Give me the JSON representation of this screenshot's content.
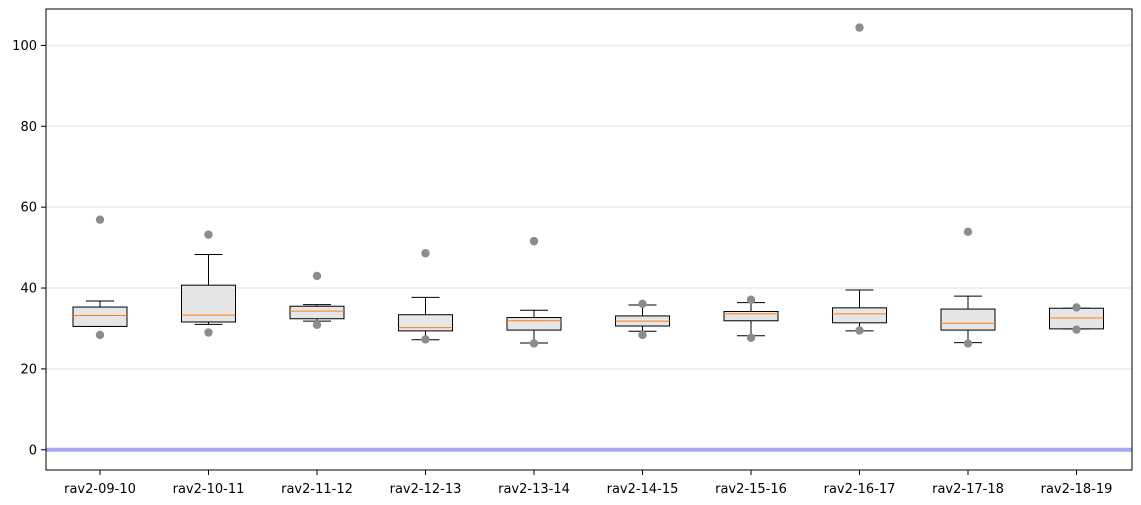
{
  "chart_data": {
    "type": "box",
    "title": "",
    "xlabel": "",
    "ylabel": "",
    "ylim": [
      -5,
      109
    ],
    "yticks": [
      0,
      20,
      40,
      60,
      80,
      100
    ],
    "grid": "horizontal, light gray",
    "reference_line": {
      "y": 0,
      "color": "#a6a6f2"
    },
    "colors": {
      "box_fill": "#e6e6e6",
      "box_edge": "#000000",
      "median": "#ff7f0e",
      "outlier": "#8c8c8c",
      "grid": "#ebebeb"
    },
    "categories": [
      "rav2-09-10",
      "rav2-10-11",
      "rav2-11-12",
      "rav2-12-13",
      "rav2-13-14",
      "rav2-14-15",
      "rav2-15-16",
      "rav2-16-17",
      "rav2-17-18",
      "rav2-18-19"
    ],
    "boxes": [
      {
        "whisker_low": 30.5,
        "q1": 30.5,
        "median": 33.2,
        "q3": 35.3,
        "whisker_high": 36.8,
        "outliers": [
          56.9,
          28.4
        ]
      },
      {
        "whisker_low": 31.0,
        "q1": 31.6,
        "median": 33.3,
        "q3": 40.7,
        "whisker_high": 48.3,
        "outliers": [
          53.2,
          29.0
        ]
      },
      {
        "whisker_low": 31.8,
        "q1": 32.4,
        "median": 34.3,
        "q3": 35.5,
        "whisker_high": 35.9,
        "outliers": [
          43.0,
          30.9
        ]
      },
      {
        "whisker_low": 27.2,
        "q1": 29.4,
        "median": 30.2,
        "q3": 33.4,
        "whisker_high": 37.7,
        "outliers": [
          48.6,
          27.3
        ]
      },
      {
        "whisker_low": 26.4,
        "q1": 29.6,
        "median": 31.9,
        "q3": 32.7,
        "whisker_high": 34.5,
        "outliers": [
          51.6,
          26.3
        ]
      },
      {
        "whisker_low": 29.3,
        "q1": 30.6,
        "median": 31.8,
        "q3": 33.1,
        "whisker_high": 35.8,
        "outliers": [
          36.1,
          28.4
        ]
      },
      {
        "whisker_low": 28.2,
        "q1": 31.9,
        "median": 33.6,
        "q3": 34.2,
        "whisker_high": 36.4,
        "outliers": [
          37.1,
          27.7
        ]
      },
      {
        "whisker_low": 29.4,
        "q1": 31.4,
        "median": 33.6,
        "q3": 35.1,
        "whisker_high": 39.5,
        "outliers": [
          104.4,
          29.5
        ]
      },
      {
        "whisker_low": 26.5,
        "q1": 29.6,
        "median": 31.3,
        "q3": 34.8,
        "whisker_high": 38.0,
        "outliers": [
          53.9,
          26.3
        ]
      },
      {
        "whisker_low": 29.9,
        "q1": 29.9,
        "median": 32.6,
        "q3": 35.0,
        "whisker_high": 35.0,
        "outliers": [
          35.2,
          29.7
        ]
      }
    ]
  }
}
